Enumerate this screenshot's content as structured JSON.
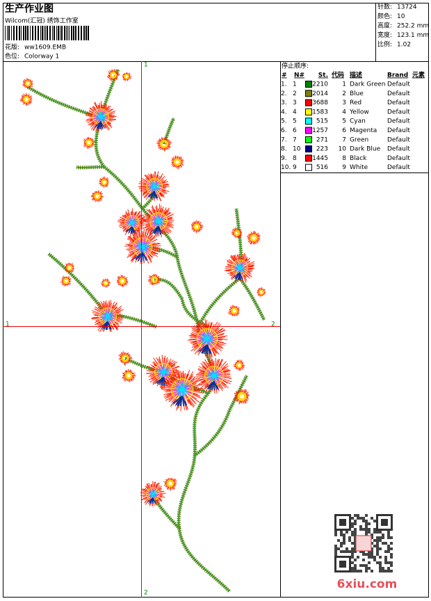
{
  "header": {
    "title": "生产作业图",
    "subtitle": "Wilcom(汇冠) 绣饰工作室",
    "file_label": "花版:",
    "file_name": "ww1609.EMB",
    "colorway_label": "色位:",
    "colorway": "Colorway 1"
  },
  "info": [
    {
      "label": "针数:",
      "value": "13724"
    },
    {
      "label": "颜色:",
      "value": "10"
    },
    {
      "label": "高度:",
      "value": "252.2 mm"
    },
    {
      "label": "宽度:",
      "value": "123.1 mm"
    },
    {
      "label": "比例:",
      "value": "1.02"
    }
  ],
  "axis_marks": {
    "top": "1",
    "bottom": "2",
    "left": "1",
    "right": "2"
  },
  "stop_sequence": {
    "title": "停止顺序:",
    "headers": [
      "#",
      "N#",
      "St.",
      "代码",
      "描述",
      "Brand",
      "元素"
    ],
    "rows": [
      {
        "index": "1.",
        "needle": "1",
        "color": "#008000",
        "stitches": "2210",
        "code": "1",
        "description": "Dark Green",
        "brand": "Default"
      },
      {
        "index": "2.",
        "needle": "2",
        "color": "#808000",
        "stitches": "2014",
        "code": "2",
        "description": "Blue",
        "brand": "Default"
      },
      {
        "index": "3.",
        "needle": "3",
        "color": "#ff0000",
        "stitches": "3688",
        "code": "3",
        "description": "Red",
        "brand": "Default"
      },
      {
        "index": "4.",
        "needle": "4",
        "color": "#ffff00",
        "stitches": "1583",
        "code": "4",
        "description": "Yellow",
        "brand": "Default"
      },
      {
        "index": "5.",
        "needle": "5",
        "color": "#00ffff",
        "stitches": "515",
        "code": "5",
        "description": "Cyan",
        "brand": "Default"
      },
      {
        "index": "6.",
        "needle": "6",
        "color": "#ff00ff",
        "stitches": "1257",
        "code": "6",
        "description": "Magenta",
        "brand": "Default"
      },
      {
        "index": "7.",
        "needle": "7",
        "color": "#00ff00",
        "stitches": "271",
        "code": "7",
        "description": "Green",
        "brand": "Default"
      },
      {
        "index": "8.",
        "needle": "10",
        "color": "#000080",
        "stitches": "223",
        "code": "10",
        "description": "Dark Blue",
        "brand": "Default"
      },
      {
        "index": "9.",
        "needle": "8",
        "color": "#ff0000",
        "stitches": "1445",
        "code": "8",
        "description": "Black",
        "brand": "Default"
      },
      {
        "index": "10.",
        "needle": "9",
        "color": "#ffffff",
        "stitches": "516",
        "code": "9",
        "description": "White",
        "brand": "Default"
      }
    ]
  },
  "watermark": "6xiu.com"
}
